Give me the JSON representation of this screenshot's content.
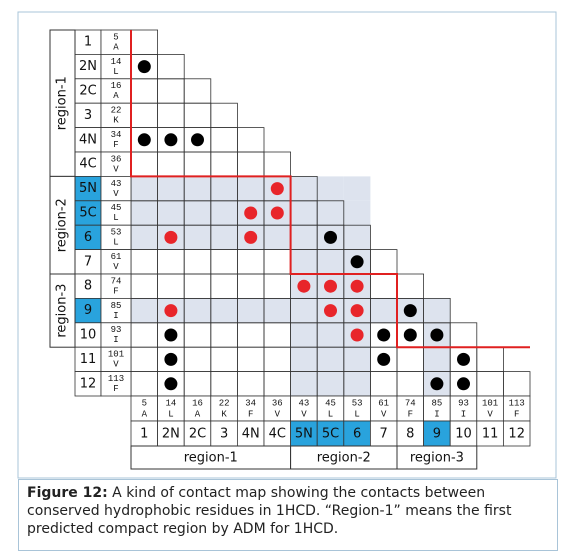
{
  "map": {
    "rows": [
      {
        "label": "1",
        "number": 5,
        "letter": "A"
      },
      {
        "label": "2N",
        "number": 14,
        "letter": "L"
      },
      {
        "label": "2C",
        "number": 16,
        "letter": "A"
      },
      {
        "label": "3",
        "number": 22,
        "letter": "K"
      },
      {
        "label": "4N",
        "number": 34,
        "letter": "F"
      },
      {
        "label": "4C",
        "number": 36,
        "letter": "V"
      },
      {
        "label": "5N",
        "number": 43,
        "letter": "V"
      },
      {
        "label": "5C",
        "number": 45,
        "letter": "L"
      },
      {
        "label": "6",
        "number": 53,
        "letter": "L"
      },
      {
        "label": "7",
        "number": 61,
        "letter": "V"
      },
      {
        "label": "8",
        "number": 74,
        "letter": "F"
      },
      {
        "label": "9",
        "number": 85,
        "letter": "I"
      },
      {
        "label": "10",
        "number": 93,
        "letter": "I"
      },
      {
        "label": "11",
        "number": 101,
        "letter": "V"
      },
      {
        "label": "12",
        "number": 113,
        "letter": "F"
      }
    ],
    "highlight": [
      "5N",
      "5C",
      "6",
      "9"
    ],
    "regions": [
      {
        "name": "region-1",
        "first": "1",
        "last": "4C"
      },
      {
        "name": "region-2",
        "first": "5N",
        "last": "7"
      },
      {
        "name": "region-3",
        "first": "8",
        "last": "10"
      }
    ],
    "contacts": [
      {
        "row": 14,
        "col": 5,
        "color": "black"
      },
      {
        "row": 34,
        "col": 5,
        "color": "black"
      },
      {
        "row": 34,
        "col": 14,
        "color": "black"
      },
      {
        "row": 34,
        "col": 16,
        "color": "black"
      },
      {
        "row": 43,
        "col": 36,
        "color": "red"
      },
      {
        "row": 45,
        "col": 34,
        "color": "red"
      },
      {
        "row": 45,
        "col": 36,
        "color": "red"
      },
      {
        "row": 53,
        "col": 14,
        "color": "red"
      },
      {
        "row": 53,
        "col": 34,
        "color": "red"
      },
      {
        "row": 53,
        "col": 45,
        "color": "black"
      },
      {
        "row": 61,
        "col": 53,
        "color": "black"
      },
      {
        "row": 74,
        "col": 43,
        "color": "red"
      },
      {
        "row": 74,
        "col": 45,
        "color": "red"
      },
      {
        "row": 74,
        "col": 53,
        "color": "red"
      },
      {
        "row": 85,
        "col": 14,
        "color": "red"
      },
      {
        "row": 85,
        "col": 45,
        "color": "red"
      },
      {
        "row": 85,
        "col": 53,
        "color": "red"
      },
      {
        "row": 85,
        "col": 74,
        "color": "black"
      },
      {
        "row": 93,
        "col": 14,
        "color": "black"
      },
      {
        "row": 93,
        "col": 53,
        "color": "red"
      },
      {
        "row": 93,
        "col": 61,
        "color": "black"
      },
      {
        "row": 93,
        "col": 74,
        "color": "black"
      },
      {
        "row": 93,
        "col": 85,
        "color": "black"
      },
      {
        "row": 101,
        "col": 14,
        "color": "black"
      },
      {
        "row": 101,
        "col": 61,
        "color": "black"
      },
      {
        "row": 101,
        "col": 93,
        "color": "black"
      },
      {
        "row": 113,
        "col": 14,
        "color": "black"
      },
      {
        "row": 113,
        "col": 85,
        "color": "black"
      },
      {
        "row": 113,
        "col": 93,
        "color": "black"
      }
    ]
  },
  "caption": {
    "label": "Figure 12:",
    "text": "A kind of contact map showing the contacts between conserved hydrophobic residues in 1HCD. “Region-1” means the first predicted compact region by ADM for 1HCD."
  }
}
